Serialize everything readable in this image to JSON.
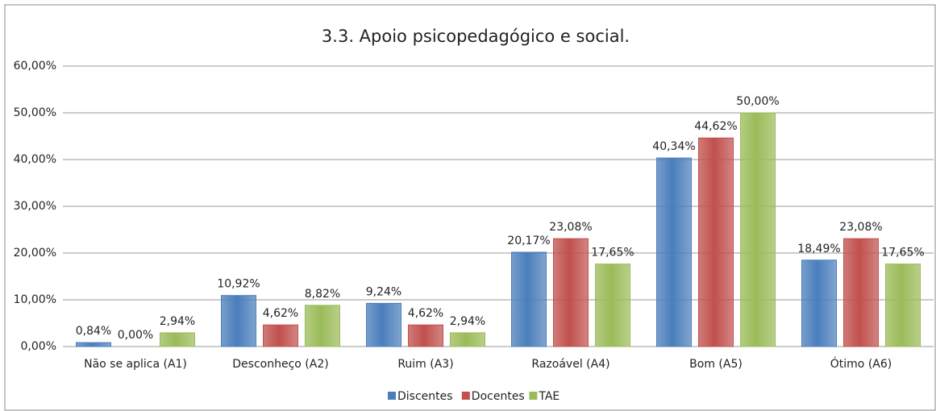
{
  "chart_data": {
    "type": "bar",
    "title": "3.3. Apoio psicopedagógico e social.",
    "categories": [
      "Não se aplica (A1)",
      "Desconheço (A2)",
      "Ruim (A3)",
      "Razoável (A4)",
      "Bom (A5)",
      "Ótimo (A6)"
    ],
    "series": [
      {
        "name": "Discentes",
        "color": "#4a7ebb",
        "values": [
          0.84,
          10.92,
          9.24,
          20.17,
          40.34,
          18.49
        ],
        "value_labels": [
          "0,84%",
          "10,92%",
          "9,24%",
          "20,17%",
          "40,34%",
          "18,49%"
        ]
      },
      {
        "name": "Docentes",
        "color": "#c0504d",
        "values": [
          0,
          4.62,
          4.62,
          23.08,
          44.62,
          23.08
        ],
        "value_labels": [
          "0,00%",
          "4,62%",
          "4,62%",
          "23,08%",
          "44,62%",
          "23,08%"
        ]
      },
      {
        "name": "TAE",
        "color": "#9bbb59",
        "values": [
          2.94,
          8.82,
          2.94,
          17.65,
          50,
          17.65
        ],
        "value_labels": [
          "2,94%",
          "8,82%",
          "2,94%",
          "17,65%",
          "50,00%",
          "17,65%"
        ]
      }
    ],
    "ylim": [
      0,
      60
    ],
    "yticks": [
      {
        "value": 0,
        "label": "0,00%"
      },
      {
        "value": 10,
        "label": "10,00%"
      },
      {
        "value": 20,
        "label": "20,00%"
      },
      {
        "value": 30,
        "label": "30,00%"
      },
      {
        "value": 40,
        "label": "40,00%"
      },
      {
        "value": 50,
        "label": "50,00%"
      },
      {
        "value": 60,
        "label": "60,00%"
      }
    ],
    "grid": true,
    "legend": "bottom"
  }
}
